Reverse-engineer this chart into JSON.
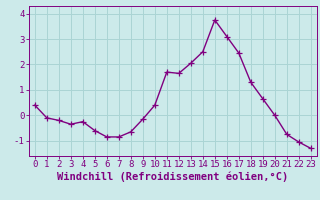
{
  "x": [
    0,
    1,
    2,
    3,
    4,
    5,
    6,
    7,
    8,
    9,
    10,
    11,
    12,
    13,
    14,
    15,
    16,
    17,
    18,
    19,
    20,
    21,
    22,
    23
  ],
  "y": [
    0.4,
    -0.1,
    -0.2,
    -0.35,
    -0.25,
    -0.6,
    -0.85,
    -0.85,
    -0.65,
    -0.15,
    0.4,
    1.7,
    1.65,
    2.05,
    2.5,
    3.75,
    3.1,
    2.45,
    1.3,
    0.65,
    0.0,
    -0.75,
    -1.05,
    -1.3
  ],
  "line_color": "#800080",
  "marker": "+",
  "marker_size": 4,
  "line_width": 1.0,
  "bg_color": "#cceaea",
  "grid_color": "#aad4d4",
  "axis_color": "#800080",
  "xlabel": "Windchill (Refroidissement éolien,°C)",
  "xlim": [
    -0.5,
    23.5
  ],
  "ylim": [
    -1.6,
    4.3
  ],
  "yticks": [
    -1,
    0,
    1,
    2,
    3,
    4
  ],
  "xticks": [
    0,
    1,
    2,
    3,
    4,
    5,
    6,
    7,
    8,
    9,
    10,
    11,
    12,
    13,
    14,
    15,
    16,
    17,
    18,
    19,
    20,
    21,
    22,
    23
  ],
  "tick_font_size": 6.5,
  "label_font_size": 7.5
}
